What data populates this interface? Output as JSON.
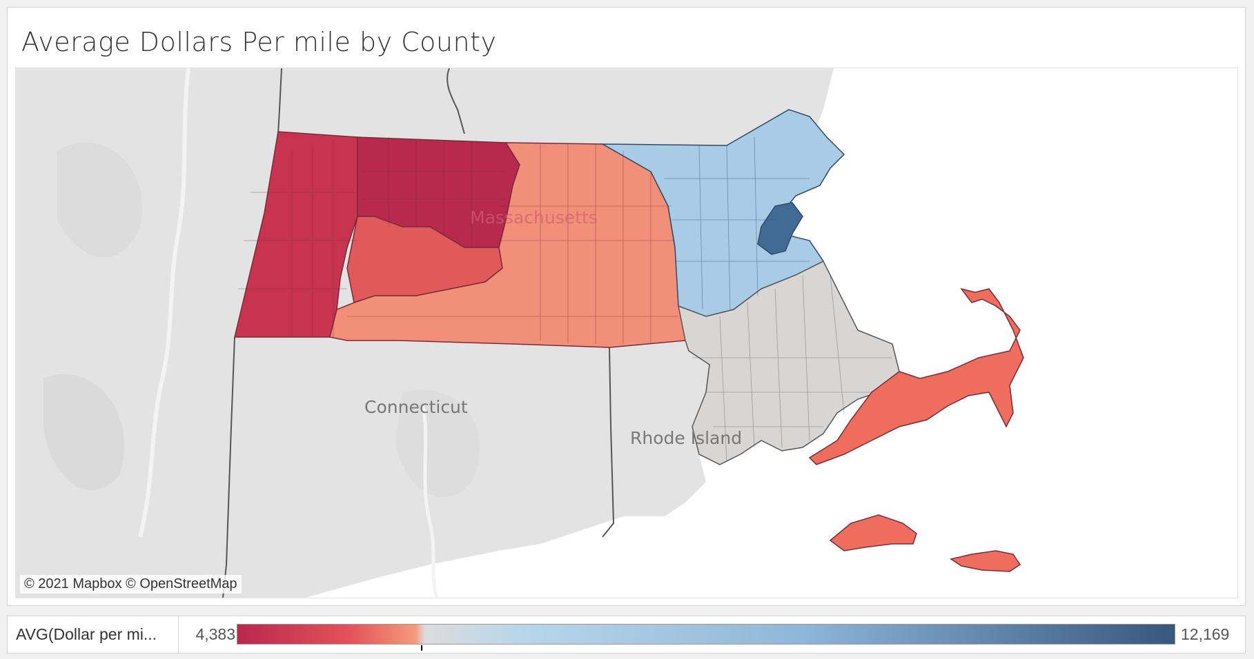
{
  "title": "Average Dollars Per mile by County",
  "map": {
    "labels": {
      "massachusetts": "Massachusetts",
      "connecticut": "Connecticut",
      "rhode_island": "Rhode Island"
    },
    "attribution": "© 2021 Mapbox © OpenStreetMap",
    "colors": {
      "land": "#e4e4e4",
      "water": "#ffffff",
      "berkshire": "#c8344f",
      "franklin_worcester_north": "#b8294e",
      "hampden_hampshire": "#e05a5a",
      "worcester": "#f28f78",
      "middlesex_essex_norfolk": "#a9cce6",
      "suffolk": "#416b94",
      "plymouth_bristol": "#d8d5d5",
      "barnstable_islands": "#ef6d5c"
    }
  },
  "legend": {
    "field_label": "AVG(Dollar per mi...",
    "min": "4,383",
    "max": "12,169",
    "midpoint_fraction": 0.196,
    "colors": {
      "low": "#b8294e",
      "mid_low": "#f59a7c",
      "mid": "#dcdcdc",
      "mid_high": "#9cc3e0",
      "high": "#36587d"
    }
  }
}
